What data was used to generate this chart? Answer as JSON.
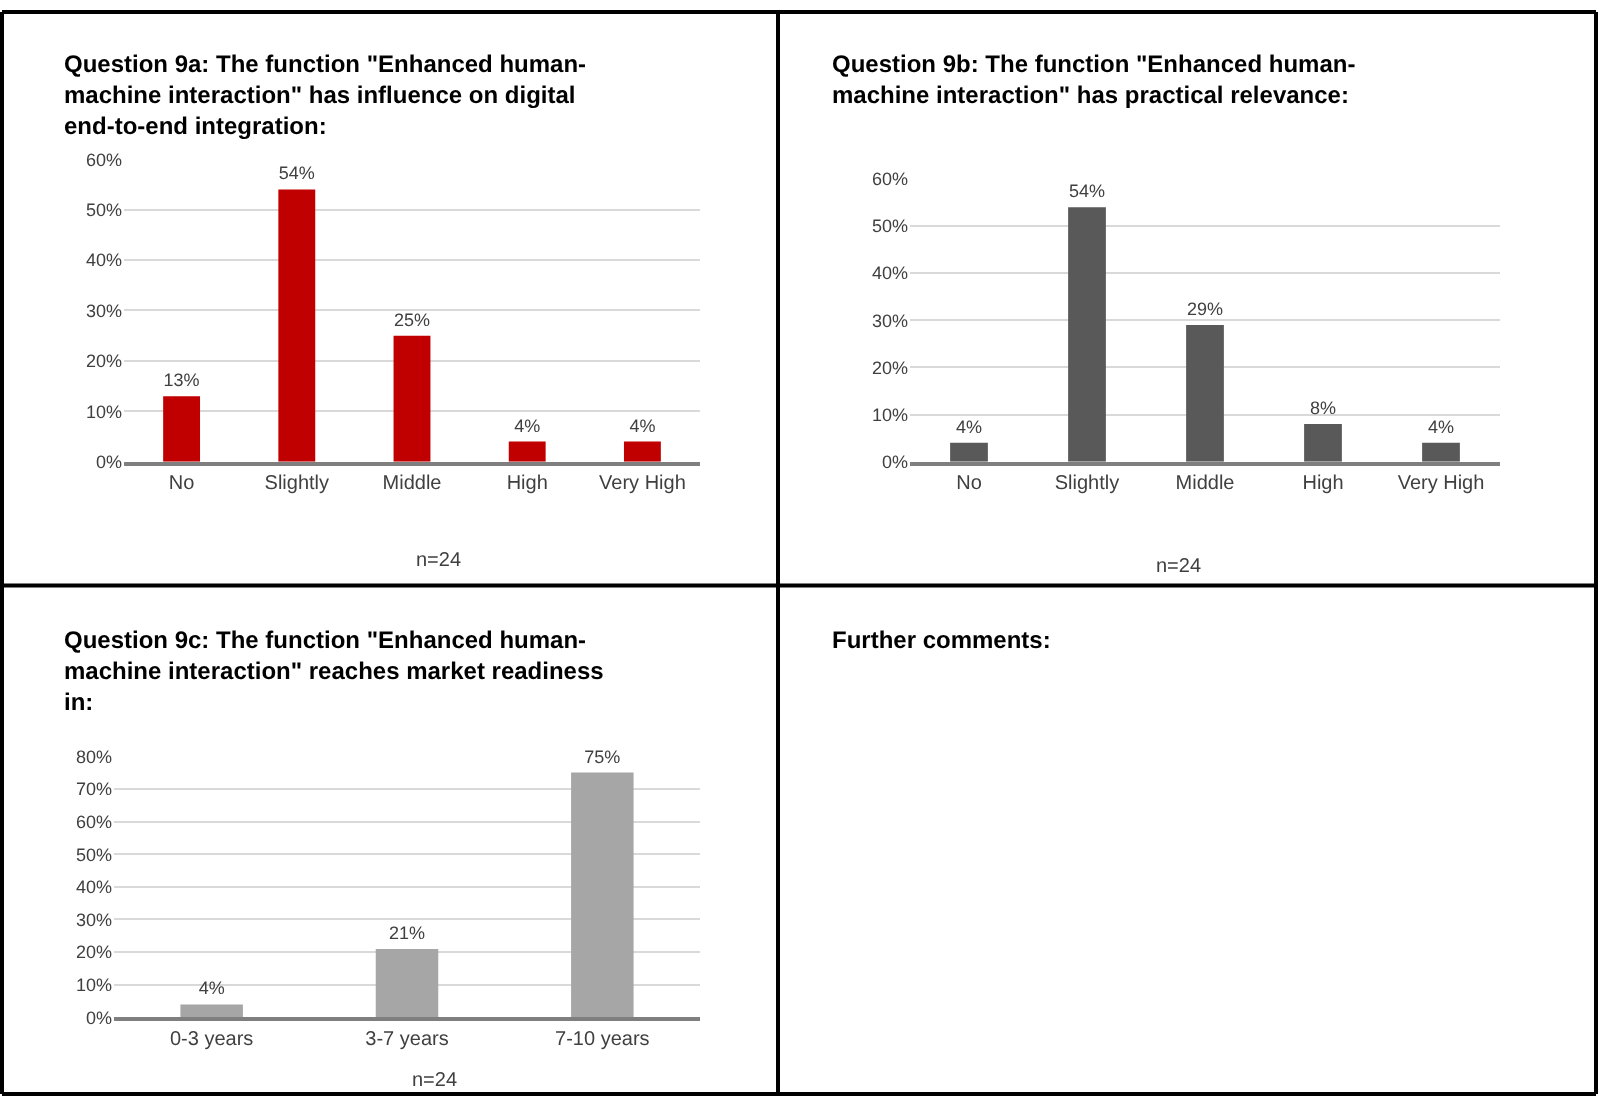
{
  "chart_data": [
    {
      "type": "bar",
      "title": "Question 9a: The function \"Enhanced human-machine interaction\" has influence on digital end-to-end integration:",
      "categories": [
        "No",
        "Slightly",
        "Middle",
        "High",
        "Very High"
      ],
      "values": [
        13,
        54,
        25,
        4,
        4
      ],
      "value_labels": [
        "13%",
        "54%",
        "25%",
        "4%",
        "4%"
      ],
      "color": "#c00000",
      "ylim": [
        0,
        60
      ],
      "yticks": [
        {
          "value": 0,
          "label": "0%"
        },
        {
          "value": 10,
          "label": "10%"
        },
        {
          "value": 20,
          "label": "20%"
        },
        {
          "value": 30,
          "label": "30%"
        },
        {
          "value": 40,
          "label": "40%"
        },
        {
          "value": 50,
          "label": "50%"
        },
        {
          "value": 60,
          "label": "60%"
        }
      ],
      "grid": "y",
      "annotations": [
        "n=24"
      ]
    },
    {
      "type": "bar",
      "title": "Question 9b: The function \"Enhanced human-machine interaction\" has practical relevance:",
      "categories": [
        "No",
        "Slightly",
        "Middle",
        "High",
        "Very High"
      ],
      "values": [
        4,
        54,
        29,
        8,
        4
      ],
      "value_labels": [
        "4%",
        "54%",
        "29%",
        "8%",
        "4%"
      ],
      "color": "#595959",
      "ylim": [
        0,
        60
      ],
      "yticks": [
        {
          "value": 0,
          "label": "0%"
        },
        {
          "value": 10,
          "label": "10%"
        },
        {
          "value": 20,
          "label": "20%"
        },
        {
          "value": 30,
          "label": "30%"
        },
        {
          "value": 40,
          "label": "40%"
        },
        {
          "value": 50,
          "label": "50%"
        },
        {
          "value": 60,
          "label": "60%"
        }
      ],
      "grid": "y",
      "annotations": [
        "n=24"
      ]
    },
    {
      "type": "bar",
      "title": "Question 9c: The function \"Enhanced human-machine interaction\" reaches market readiness in:",
      "categories": [
        "0-3 years",
        "3-7 years",
        "7-10 years"
      ],
      "values": [
        4,
        21,
        75
      ],
      "value_labels": [
        "4%",
        "21%",
        "75%"
      ],
      "color": "#a6a6a6",
      "ylim": [
        0,
        80
      ],
      "yticks": [
        {
          "value": 0,
          "label": "0%"
        },
        {
          "value": 10,
          "label": "10%"
        },
        {
          "value": 20,
          "label": "20%"
        },
        {
          "value": 30,
          "label": "30%"
        },
        {
          "value": 40,
          "label": "40%"
        },
        {
          "value": 50,
          "label": "50%"
        },
        {
          "value": 60,
          "label": "60%"
        },
        {
          "value": 70,
          "label": "70%"
        },
        {
          "value": 80,
          "label": "80%"
        }
      ],
      "grid": "y",
      "annotations": [
        "n=24"
      ]
    },
    {
      "type": "other",
      "title": "Further comments:"
    }
  ]
}
